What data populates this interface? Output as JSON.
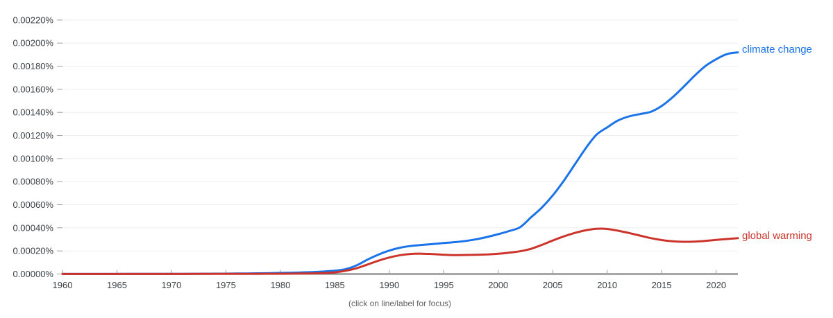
{
  "colors": {
    "background": "#ffffff",
    "grid": "#eeeeee",
    "axis": "#757575",
    "tick": "#9e9e9e",
    "axis_label_text": "#3c4043",
    "caption_text": "#616161",
    "accent_blue": "#1a73e8",
    "accent_red": "#cc342b"
  },
  "chart_data": {
    "type": "line",
    "caption": "(click on line/label for focus)",
    "grid": true,
    "legend_position": "line-end-labels-right",
    "xlim": [
      1960,
      2022
    ],
    "ylim": [
      0,
      0.0022
    ],
    "x_ticks": [
      1960,
      1965,
      1970,
      1975,
      1980,
      1985,
      1990,
      1995,
      2000,
      2005,
      2010,
      2015,
      2020
    ],
    "y_ticks": [
      {
        "value": 0.0022,
        "label": "0.00220%"
      },
      {
        "value": 0.002,
        "label": "0.00200%"
      },
      {
        "value": 0.0018,
        "label": "0.00180%"
      },
      {
        "value": 0.0016,
        "label": "0.00160%"
      },
      {
        "value": 0.0014,
        "label": "0.00140%"
      },
      {
        "value": 0.0012,
        "label": "0.00120%"
      },
      {
        "value": 0.001,
        "label": "0.00100%"
      },
      {
        "value": 0.0008,
        "label": "0.00080%"
      },
      {
        "value": 0.0006,
        "label": "0.00060%"
      },
      {
        "value": 0.0004,
        "label": "0.00040%"
      },
      {
        "value": 0.0002,
        "label": "0.00020%"
      },
      {
        "value": 0.0,
        "label": "0.00000%"
      }
    ],
    "x": [
      1960,
      1961,
      1962,
      1963,
      1964,
      1965,
      1966,
      1967,
      1968,
      1969,
      1970,
      1971,
      1972,
      1973,
      1974,
      1975,
      1976,
      1977,
      1978,
      1979,
      1980,
      1981,
      1982,
      1983,
      1984,
      1985,
      1986,
      1987,
      1988,
      1989,
      1990,
      1991,
      1992,
      1993,
      1994,
      1995,
      1996,
      1997,
      1998,
      1999,
      2000,
      2001,
      2002,
      2003,
      2004,
      2005,
      2006,
      2007,
      2008,
      2009,
      2010,
      2011,
      2012,
      2013,
      2014,
      2015,
      2016,
      2017,
      2018,
      2019,
      2020,
      2021,
      2022
    ],
    "series": [
      {
        "name": "climate change",
        "color": "#1a73e8",
        "unit": "% of ngrams",
        "values": [
          5e-07,
          5e-07,
          6e-07,
          7e-07,
          8e-07,
          9e-07,
          1e-06,
          1.1e-06,
          1.2e-06,
          1.4e-06,
          1.6e-06,
          1.8e-06,
          2e-06,
          2.4e-06,
          2.8e-06,
          3.3e-06,
          4e-06,
          5e-06,
          6.2e-06,
          7.8e-06,
          9.5e-06,
          1.15e-05,
          1.4e-05,
          1.7e-05,
          2.15e-05,
          2.85e-05,
          4.2e-05,
          7.5e-05,
          0.000125,
          0.000168,
          0.000203,
          0.000228,
          0.000243,
          0.000252,
          0.00026,
          0.000268,
          0.000276,
          0.000286,
          0.000301,
          0.000321,
          0.000345,
          0.000372,
          0.000405,
          0.00049,
          0.000575,
          0.00068,
          0.000805,
          0.000945,
          0.001085,
          0.001205,
          0.00127,
          0.00133,
          0.001365,
          0.001385,
          0.001405,
          0.001455,
          0.00153,
          0.00162,
          0.001715,
          0.0018,
          0.00186,
          0.001905,
          0.00192
        ]
      },
      {
        "name": "global warming",
        "color": "#cc342b",
        "unit": "% of ngrams",
        "values": [
          4e-07,
          4e-07,
          4e-07,
          5e-07,
          5e-07,
          5e-07,
          6e-07,
          6e-07,
          7e-07,
          7e-07,
          8e-07,
          9e-07,
          1e-06,
          1.1e-06,
          1.2e-06,
          1.3e-06,
          1.5e-06,
          1.7e-06,
          2e-06,
          2.3e-06,
          2.7e-06,
          3.2e-06,
          4e-06,
          5.5e-06,
          8.5e-06,
          1.45e-05,
          2.8e-05,
          5e-05,
          8.2e-05,
          0.000115,
          0.000143,
          0.000163,
          0.000174,
          0.000176,
          0.000172,
          0.000167,
          0.000164,
          0.000165,
          0.000167,
          0.00017,
          0.000176,
          0.000185,
          0.000197,
          0.000218,
          0.000252,
          0.00029,
          0.000325,
          0.000355,
          0.000378,
          0.000392,
          0.00039,
          0.000375,
          0.000355,
          0.000333,
          0.000311,
          0.000294,
          0.000283,
          0.000279,
          0.000281,
          0.000287,
          0.000295,
          0.000303,
          0.00031
        ]
      }
    ]
  }
}
